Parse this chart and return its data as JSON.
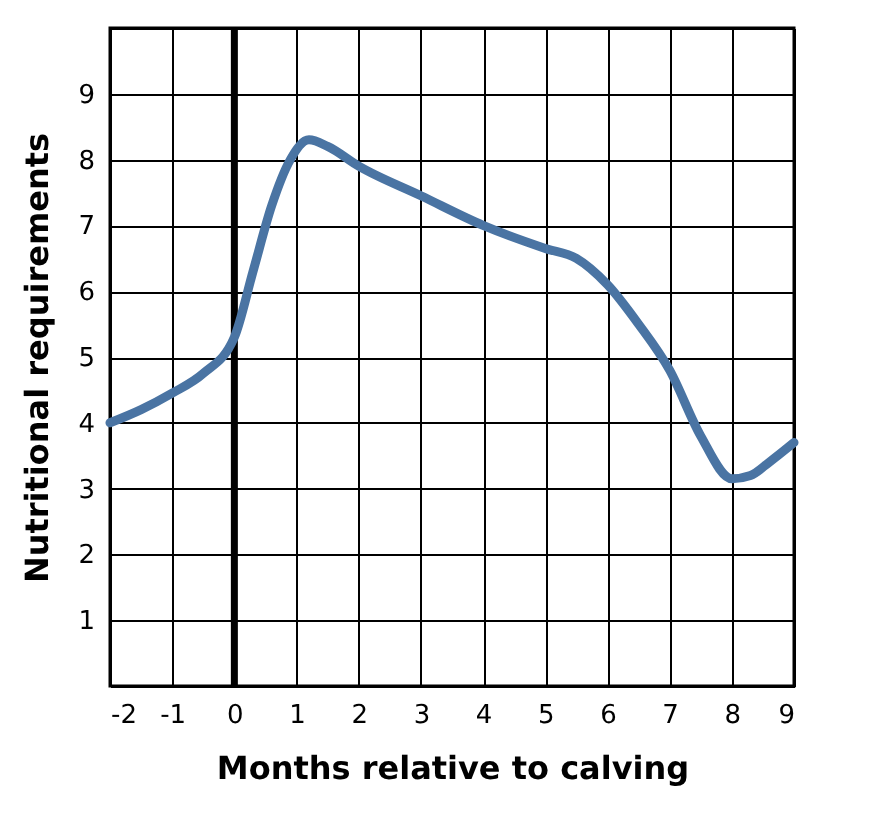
{
  "chart_data": {
    "type": "line",
    "xlabel": "Months relative to calving",
    "ylabel": "Nutritional requirements",
    "x": [
      -2,
      -1.5,
      -1,
      -0.5,
      0,
      0.3,
      0.6,
      0.9,
      1.2,
      1.5,
      2,
      3,
      4,
      5,
      5.5,
      6,
      6.5,
      7,
      7.5,
      8,
      8.3,
      8.6,
      9
    ],
    "series": [
      {
        "color": "#4a74a3",
        "values": [
          4.0,
          4.2,
          4.45,
          4.75,
          5.3,
          6.3,
          7.3,
          8.0,
          8.3,
          8.2,
          7.9,
          7.45,
          7.0,
          6.65,
          6.5,
          6.1,
          5.5,
          4.8,
          3.8,
          3.15,
          3.2,
          3.4,
          3.7
        ]
      }
    ],
    "xlim": [
      -2,
      9
    ],
    "ylim": [
      0,
      10
    ],
    "xticks": [
      -2,
      -1,
      0,
      1,
      2,
      3,
      4,
      5,
      6,
      7,
      8,
      9
    ],
    "yticks": [
      {
        "value": 0,
        "label": null
      },
      1,
      2,
      3,
      4,
      5,
      6,
      7,
      8,
      9,
      {
        "value": 10,
        "label": null
      }
    ],
    "ref_lines": [
      {
        "axis": "x",
        "value": 0,
        "color": "#000000"
      }
    ],
    "grid": true,
    "marker": "none",
    "line_style": "solid"
  }
}
